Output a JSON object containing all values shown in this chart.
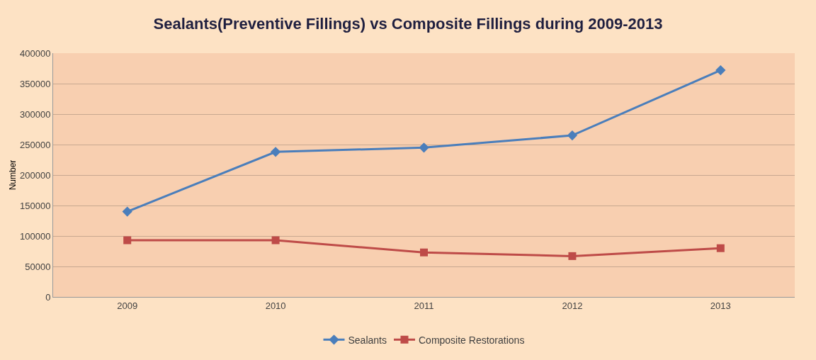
{
  "chart_data": {
    "type": "line",
    "title": "Sealants(Preventive Fillings) vs Composite Fillings during 2009-2013",
    "ylabel": "Number",
    "categories": [
      "2009",
      "2010",
      "2011",
      "2012",
      "2013"
    ],
    "series": [
      {
        "name": "Sealants",
        "color": "#4a7ebb",
        "marker": "diamond",
        "values": [
          140000,
          238000,
          245000,
          265000,
          372000
        ]
      },
      {
        "name": "Composite Restorations",
        "color": "#be4b48",
        "marker": "square",
        "values": [
          93000,
          93000,
          73000,
          67000,
          80000
        ]
      }
    ],
    "ylim": [
      0,
      400000
    ],
    "yticks": [
      0,
      50000,
      100000,
      150000,
      200000,
      250000,
      300000,
      350000,
      400000
    ],
    "grid": "y",
    "legend": "bottom",
    "line_style": "solid"
  }
}
